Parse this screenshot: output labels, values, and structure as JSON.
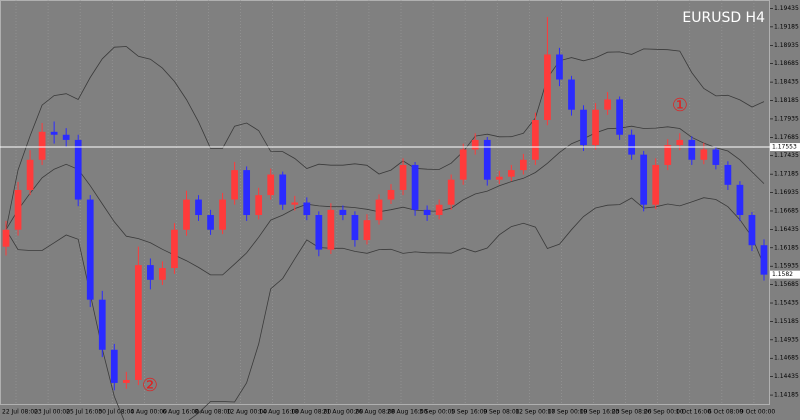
{
  "chart_data": {
    "type": "candlestick",
    "title": "EURUSD  H4",
    "open": [
      1.162,
      1.1643,
      1.1697,
      1.1738,
      1.1776,
      1.1772,
      1.1765,
      1.1684,
      1.1548,
      1.148,
      1.1435,
      1.1439,
      1.1595,
      1.1575,
      1.1591,
      1.1643,
      1.1684,
      1.1663,
      1.1643,
      1.1684,
      1.1724,
      1.1663,
      1.169,
      1.1718,
      1.1677,
      1.168,
      1.1663,
      1.1616,
      1.167,
      1.1663,
      1.1629,
      1.1656,
      1.1684,
      1.1697,
      1.1731,
      1.167,
      1.1663,
      1.1677,
      1.1711,
      1.1752,
      1.1765,
      1.1711,
      1.1715,
      1.1724,
      1.1738,
      1.1792,
      1.1881,
      1.1847,
      1.1806,
      1.1758,
      1.1806,
      1.182,
      1.1772,
      1.1745,
      1.1677,
      1.1731,
      1.1758,
      1.1765,
      1.1738,
      1.1752,
      1.1731,
      1.1704,
      1.1663,
      1.1622
    ],
    "high": [
      1.1655,
      1.1708,
      1.1751,
      1.1788,
      1.179,
      1.1781,
      1.1772,
      1.169,
      1.156,
      1.1488,
      1.145,
      1.162,
      1.1604,
      1.16,
      1.1652,
      1.1696,
      1.169,
      1.167,
      1.1693,
      1.1735,
      1.1729,
      1.17,
      1.1726,
      1.1722,
      1.1689,
      1.1687,
      1.1668,
      1.1679,
      1.1676,
      1.1668,
      1.1664,
      1.1691,
      1.1705,
      1.174,
      1.1735,
      1.1676,
      1.1684,
      1.1718,
      1.176,
      1.1774,
      1.1769,
      1.1723,
      1.1731,
      1.1746,
      1.1802,
      1.1932,
      1.189,
      1.1852,
      1.1812,
      1.1815,
      1.183,
      1.1824,
      1.1779,
      1.175,
      1.174,
      1.1766,
      1.1774,
      1.177,
      1.1761,
      1.1756,
      1.1736,
      1.1709,
      1.1667,
      1.163
    ],
    "low": [
      1.1608,
      1.1635,
      1.169,
      1.1731,
      1.176,
      1.1755,
      1.1675,
      1.1538,
      1.147,
      1.1425,
      1.1427,
      1.1432,
      1.1562,
      1.1568,
      1.1583,
      1.1635,
      1.1655,
      1.1636,
      1.1637,
      1.1677,
      1.1655,
      1.1657,
      1.1684,
      1.167,
      1.1669,
      1.1656,
      1.1607,
      1.161,
      1.1656,
      1.162,
      1.1623,
      1.165,
      1.1678,
      1.169,
      1.1662,
      1.1655,
      1.1657,
      1.167,
      1.1704,
      1.1745,
      1.1703,
      1.1705,
      1.1709,
      1.1718,
      1.1731,
      1.1785,
      1.1838,
      1.1798,
      1.175,
      1.1752,
      1.1799,
      1.1765,
      1.1738,
      1.1668,
      1.1671,
      1.1724,
      1.1751,
      1.1731,
      1.1732,
      1.1725,
      1.1697,
      1.1655,
      1.1614,
      1.1574
    ],
    "close": [
      1.1643,
      1.1697,
      1.1738,
      1.1776,
      1.1772,
      1.1765,
      1.1684,
      1.1548,
      1.148,
      1.1435,
      1.1439,
      1.1595,
      1.1575,
      1.1591,
      1.1643,
      1.1684,
      1.1663,
      1.1643,
      1.1684,
      1.1724,
      1.1663,
      1.169,
      1.1718,
      1.1677,
      1.168,
      1.1663,
      1.1616,
      1.167,
      1.1663,
      1.1629,
      1.1656,
      1.1684,
      1.1697,
      1.1731,
      1.167,
      1.1663,
      1.1677,
      1.1711,
      1.1752,
      1.1765,
      1.1711,
      1.1715,
      1.1724,
      1.1738,
      1.1792,
      1.1881,
      1.1847,
      1.1806,
      1.1758,
      1.1806,
      1.182,
      1.1772,
      1.1745,
      1.1677,
      1.1731,
      1.1758,
      1.1765,
      1.1738,
      1.1752,
      1.1731,
      1.1704,
      1.1663,
      1.1622,
      1.1582
    ],
    "up_color": "#ff3b3b",
    "down_color": "#2b2bff",
    "x_labels": [
      "22 Jul 08:00",
      "23 Jul 00:00",
      "25 Jul 16:00",
      "30 Jul 08:00",
      "4 Aug 00:00",
      "6 Aug 16:00",
      "8 Aug 08:00",
      "12 Aug 00:00",
      "14 Aug 16:00",
      "18 Aug 08:00",
      "21 Aug 00:00",
      "26 Aug 08:00",
      "28 Aug 16:00",
      "3 Sep 00:00",
      "5 Sep 16:00",
      "9 Sep 08:00",
      "12 Sep 00:00",
      "17 Sep 00:00",
      "19 Sep 16:00",
      "23 Sep 08:00",
      "26 Sep 00:00",
      "1 Oct 16:00",
      "6 Oct 08:00",
      "9 Oct 00:00"
    ],
    "ylim": [
      1.1405,
      1.1955
    ],
    "yticks": [
      1.14185,
      1.14435,
      1.14685,
      1.14935,
      1.15185,
      1.15435,
      1.15685,
      1.15935,
      1.16185,
      1.16435,
      1.16685,
      1.16935,
      1.17185,
      1.17435,
      1.17685,
      1.17935,
      1.18185,
      1.18435,
      1.18685,
      1.18935,
      1.19185,
      1.19435
    ],
    "hline": 1.17553,
    "annotations": [
      "①",
      "②"
    ],
    "grid": true
  }
}
